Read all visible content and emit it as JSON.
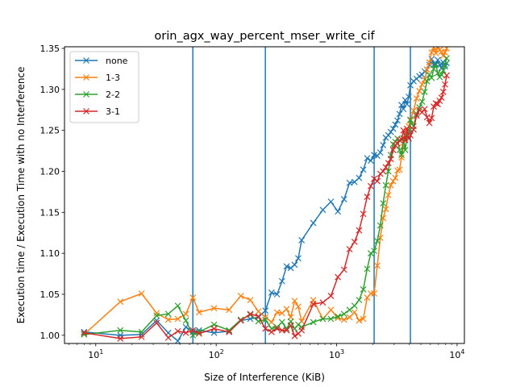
{
  "chart_data": {
    "type": "line",
    "title": "orin_agx_way_percent_mser_write_cif",
    "xlabel": "Size of Interference (KiB)",
    "ylabel": "Execution time / Execution Time with no Interference",
    "xscale": "log",
    "xlim": [
      5.5,
      11500
    ],
    "ylim": [
      0.99,
      1.352
    ],
    "xticks": [
      {
        "value": 10,
        "base": "10",
        "exp": "1"
      },
      {
        "value": 100,
        "base": "10",
        "exp": "2"
      },
      {
        "value": 1000,
        "base": "10",
        "exp": "3"
      },
      {
        "value": 10000,
        "base": "10",
        "exp": "4"
      }
    ],
    "yticks": [
      "1.00",
      "1.05",
      "1.10",
      "1.15",
      "1.20",
      "1.25",
      "1.30",
      "1.35"
    ],
    "vlines": [
      64,
      256,
      2048,
      4096
    ],
    "vline_color": "#1f77b4",
    "grid": false,
    "legend_position": "upper-left",
    "marker": "x",
    "series": [
      {
        "name": "none",
        "color": "#1f77b4",
        "points": [
          [
            8,
            1.004
          ],
          [
            16,
            1.0
          ],
          [
            24,
            1.001
          ],
          [
            32,
            1.018
          ],
          [
            40,
            1.003
          ],
          [
            48,
            0.993
          ],
          [
            56,
            1.01
          ],
          [
            64,
            1.004
          ],
          [
            72,
            1.006
          ],
          [
            96,
            1.003
          ],
          [
            128,
            1.005
          ],
          [
            160,
            1.018
          ],
          [
            192,
            1.02
          ],
          [
            224,
            1.022
          ],
          [
            256,
            1.03
          ],
          [
            288,
            1.052
          ],
          [
            320,
            1.05
          ],
          [
            352,
            1.066
          ],
          [
            384,
            1.084
          ],
          [
            416,
            1.082
          ],
          [
            448,
            1.086
          ],
          [
            480,
            1.094
          ],
          [
            512,
            1.116
          ],
          [
            640,
            1.137
          ],
          [
            768,
            1.153
          ],
          [
            896,
            1.163
          ],
          [
            1024,
            1.151
          ],
          [
            1152,
            1.166
          ],
          [
            1280,
            1.186
          ],
          [
            1408,
            1.187
          ],
          [
            1536,
            1.192
          ],
          [
            1664,
            1.202
          ],
          [
            1792,
            1.216
          ],
          [
            1920,
            1.213
          ],
          [
            2048,
            1.22
          ],
          [
            2176,
            1.219
          ],
          [
            2304,
            1.223
          ],
          [
            2432,
            1.232
          ],
          [
            2560,
            1.241
          ],
          [
            2688,
            1.244
          ],
          [
            2816,
            1.248
          ],
          [
            2944,
            1.252
          ],
          [
            3072,
            1.257
          ],
          [
            3200,
            1.262
          ],
          [
            3328,
            1.27
          ],
          [
            3456,
            1.281
          ],
          [
            3584,
            1.276
          ],
          [
            3712,
            1.287
          ],
          [
            3840,
            1.282
          ],
          [
            3968,
            1.291
          ],
          [
            4096,
            1.305
          ],
          [
            4352,
            1.31
          ],
          [
            4608,
            1.313
          ],
          [
            4864,
            1.316
          ],
          [
            5120,
            1.318
          ],
          [
            5376,
            1.322
          ],
          [
            5632,
            1.324
          ],
          [
            5888,
            1.33
          ],
          [
            6144,
            1.337
          ],
          [
            6400,
            1.33
          ],
          [
            6656,
            1.331
          ],
          [
            6912,
            1.336
          ],
          [
            7168,
            1.33
          ],
          [
            7424,
            1.326
          ],
          [
            7680,
            1.333
          ],
          [
            7936,
            1.328
          ],
          [
            8192,
            1.332
          ]
        ]
      },
      {
        "name": "1-3",
        "color": "#ff7f0e",
        "points": [
          [
            8,
            1.001
          ],
          [
            16,
            1.041
          ],
          [
            24,
            1.051
          ],
          [
            32,
            1.027
          ],
          [
            40,
            1.019
          ],
          [
            48,
            1.02
          ],
          [
            56,
            1.026
          ],
          [
            64,
            1.046
          ],
          [
            72,
            1.028
          ],
          [
            96,
            1.033
          ],
          [
            128,
            1.031
          ],
          [
            160,
            1.048
          ],
          [
            192,
            1.043
          ],
          [
            224,
            1.029
          ],
          [
            256,
            1.022
          ],
          [
            288,
            1.016
          ],
          [
            320,
            1.028
          ],
          [
            352,
            1.027
          ],
          [
            384,
            1.032
          ],
          [
            416,
            1.022
          ],
          [
            448,
            1.042
          ],
          [
            480,
            1.035
          ],
          [
            512,
            1.017
          ],
          [
            640,
            1.043
          ],
          [
            768,
            1.02
          ],
          [
            896,
            1.031
          ],
          [
            1024,
            1.021
          ],
          [
            1152,
            1.019
          ],
          [
            1280,
            1.022
          ],
          [
            1408,
            1.028
          ],
          [
            1536,
            1.018
          ],
          [
            1664,
            1.02
          ],
          [
            1792,
            1.046
          ],
          [
            1920,
            1.051
          ],
          [
            2048,
            1.051
          ],
          [
            2176,
            1.085
          ],
          [
            2304,
            1.119
          ],
          [
            2432,
            1.143
          ],
          [
            2560,
            1.154
          ],
          [
            2688,
            1.171
          ],
          [
            2816,
            1.183
          ],
          [
            2944,
            1.188
          ],
          [
            3072,
            1.192
          ],
          [
            3200,
            1.201
          ],
          [
            3328,
            1.202
          ],
          [
            3456,
            1.217
          ],
          [
            3584,
            1.23
          ],
          [
            3712,
            1.24
          ],
          [
            3840,
            1.249
          ],
          [
            3968,
            1.255
          ],
          [
            4096,
            1.262
          ],
          [
            4352,
            1.274
          ],
          [
            4608,
            1.289
          ],
          [
            4864,
            1.298
          ],
          [
            5120,
            1.306
          ],
          [
            5376,
            1.312
          ],
          [
            5632,
            1.324
          ],
          [
            5888,
            1.333
          ],
          [
            6144,
            1.345
          ],
          [
            6400,
            1.351
          ],
          [
            6656,
            1.344
          ],
          [
            6912,
            1.352
          ],
          [
            7168,
            1.348
          ],
          [
            7424,
            1.346
          ],
          [
            7680,
            1.341
          ],
          [
            7936,
            1.345
          ],
          [
            8192,
            1.35
          ]
        ]
      },
      {
        "name": "2-2",
        "color": "#2ca02c",
        "points": [
          [
            8,
            1.001
          ],
          [
            16,
            1.006
          ],
          [
            24,
            1.004
          ],
          [
            32,
            1.024
          ],
          [
            40,
            1.026
          ],
          [
            48,
            1.036
          ],
          [
            56,
            1.018
          ],
          [
            64,
            1.0
          ],
          [
            72,
            1.004
          ],
          [
            96,
            1.013
          ],
          [
            128,
            1.006
          ],
          [
            160,
            1.019
          ],
          [
            192,
            1.025
          ],
          [
            224,
            1.017
          ],
          [
            256,
            1.019
          ],
          [
            288,
            1.008
          ],
          [
            320,
            1.01
          ],
          [
            352,
            1.016
          ],
          [
            384,
            1.008
          ],
          [
            416,
            1.017
          ],
          [
            448,
            1.008
          ],
          [
            480,
            1.013
          ],
          [
            512,
            1.01
          ],
          [
            640,
            1.016
          ],
          [
            768,
            1.02
          ],
          [
            896,
            1.02
          ],
          [
            1024,
            1.023
          ],
          [
            1152,
            1.026
          ],
          [
            1280,
            1.031
          ],
          [
            1408,
            1.036
          ],
          [
            1536,
            1.043
          ],
          [
            1664,
            1.056
          ],
          [
            1792,
            1.081
          ],
          [
            1920,
            1.1
          ],
          [
            2048,
            1.103
          ],
          [
            2176,
            1.115
          ],
          [
            2304,
            1.134
          ],
          [
            2432,
            1.161
          ],
          [
            2560,
            1.183
          ],
          [
            2688,
            1.2
          ],
          [
            2816,
            1.22
          ],
          [
            2944,
            1.233
          ],
          [
            3072,
            1.236
          ],
          [
            3200,
            1.24
          ],
          [
            3328,
            1.226
          ],
          [
            3456,
            1.22
          ],
          [
            3584,
            1.24
          ],
          [
            3712,
            1.226
          ],
          [
            3840,
            1.243
          ],
          [
            3968,
            1.247
          ],
          [
            4096,
            1.263
          ],
          [
            4352,
            1.255
          ],
          [
            4608,
            1.27
          ],
          [
            4864,
            1.278
          ],
          [
            5120,
            1.285
          ],
          [
            5376,
            1.297
          ],
          [
            5632,
            1.31
          ],
          [
            5888,
            1.318
          ],
          [
            6144,
            1.314
          ],
          [
            6400,
            1.325
          ],
          [
            6656,
            1.33
          ],
          [
            6912,
            1.32
          ],
          [
            7168,
            1.315
          ],
          [
            7424,
            1.318
          ],
          [
            7680,
            1.323
          ],
          [
            7936,
            1.33
          ],
          [
            8192,
            1.338
          ]
        ]
      },
      {
        "name": "3-1",
        "color": "#d62728",
        "points": [
          [
            8,
            1.003
          ],
          [
            16,
            0.996
          ],
          [
            24,
            0.998
          ],
          [
            32,
            1.015
          ],
          [
            40,
            0.997
          ],
          [
            48,
            1.005
          ],
          [
            56,
            1.003
          ],
          [
            64,
            1.006
          ],
          [
            72,
            1.002
          ],
          [
            96,
            1.008
          ],
          [
            128,
            1.004
          ],
          [
            160,
            1.018
          ],
          [
            192,
            1.026
          ],
          [
            224,
            1.023
          ],
          [
            256,
            1.008
          ],
          [
            288,
            1.004
          ],
          [
            320,
            1.008
          ],
          [
            352,
            1.006
          ],
          [
            384,
            1.006
          ],
          [
            416,
            1.012
          ],
          [
            448,
            0.999
          ],
          [
            480,
            1.002
          ],
          [
            512,
            1.006
          ],
          [
            640,
            1.038
          ],
          [
            768,
            1.04
          ],
          [
            896,
            1.048
          ],
          [
            1024,
            1.071
          ],
          [
            1152,
            1.08
          ],
          [
            1280,
            1.105
          ],
          [
            1408,
            1.114
          ],
          [
            1536,
            1.128
          ],
          [
            1664,
            1.148
          ],
          [
            1792,
            1.169
          ],
          [
            1920,
            1.182
          ],
          [
            2048,
            1.191
          ],
          [
            2176,
            1.188
          ],
          [
            2304,
            1.197
          ],
          [
            2432,
            1.2
          ],
          [
            2560,
            1.205
          ],
          [
            2688,
            1.21
          ],
          [
            2816,
            1.215
          ],
          [
            2944,
            1.226
          ],
          [
            3072,
            1.232
          ],
          [
            3200,
            1.234
          ],
          [
            3328,
            1.238
          ],
          [
            3456,
            1.239
          ],
          [
            3584,
            1.25
          ],
          [
            3712,
            1.238
          ],
          [
            3840,
            1.252
          ],
          [
            3968,
            1.24
          ],
          [
            4096,
            1.244
          ],
          [
            4352,
            1.251
          ],
          [
            4608,
            1.268
          ],
          [
            4864,
            1.275
          ],
          [
            5120,
            1.272
          ],
          [
            5376,
            1.276
          ],
          [
            5632,
            1.266
          ],
          [
            5888,
            1.259
          ],
          [
            6144,
            1.265
          ],
          [
            6400,
            1.279
          ],
          [
            6656,
            1.283
          ],
          [
            6912,
            1.282
          ],
          [
            7168,
            1.286
          ],
          [
            7424,
            1.29
          ],
          [
            7680,
            1.297
          ],
          [
            7936,
            1.306
          ],
          [
            8192,
            1.317
          ]
        ]
      }
    ]
  }
}
